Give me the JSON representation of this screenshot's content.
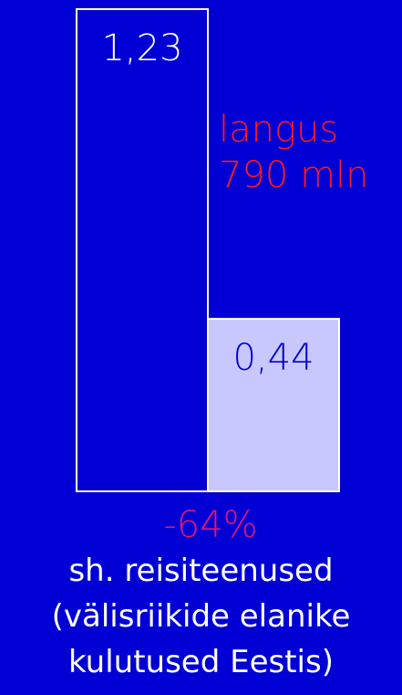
{
  "chart_data": {
    "type": "bar",
    "categories": [
      "",
      ""
    ],
    "values": [
      1.23,
      0.44
    ],
    "value_labels": [
      "1,23",
      "0,44"
    ],
    "ylim": [
      0,
      1.23
    ],
    "grid": false,
    "legend": "none",
    "bar_colors": [
      "#0000d4",
      "#c8c8ff"
    ],
    "bar_border_color": "#ffffff",
    "value_label_colors": [
      "#ffffff",
      "#0000d4"
    ],
    "annotations": {
      "decline": {
        "line1": "langus",
        "line2": "790 mln",
        "color": "#ff1a1a"
      },
      "percent_change": {
        "text": "-64%",
        "color": "#e0147a"
      }
    },
    "caption": {
      "line1": "sh. reisiteenused",
      "line2": "(välisriikide elanike",
      "line3": "kulutused Eestis)"
    }
  },
  "colors": {
    "background": "#0000d4",
    "caption_text": "#ffffff"
  }
}
